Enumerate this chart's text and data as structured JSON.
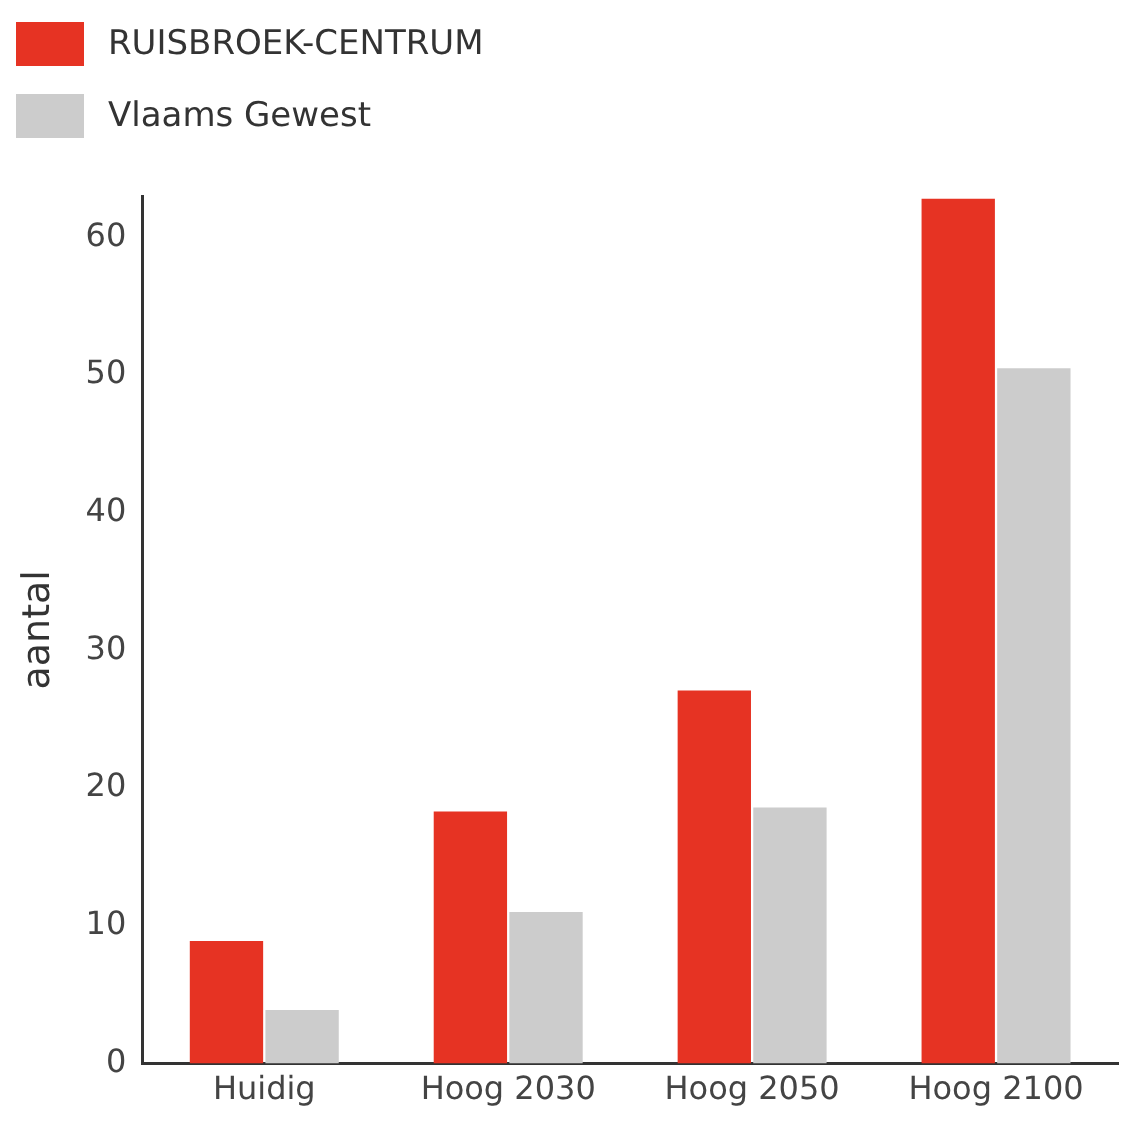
{
  "chart_data": {
    "type": "bar",
    "ylabel": "aantal",
    "categories": [
      "Huidig",
      "Hoog 2030",
      "Hoog 2050",
      "Hoog 2100"
    ],
    "series": [
      {
        "name": "RUISBROEK-CENTRUM",
        "color": "#e63323",
        "values": [
          8.9,
          18.3,
          27.1,
          62.8
        ]
      },
      {
        "name": "Vlaams Gewest",
        "color": "#cccccc",
        "values": [
          3.9,
          11.0,
          18.6,
          50.5
        ]
      }
    ],
    "ylim": [
      0,
      63
    ],
    "yticks": [
      0,
      10,
      20,
      30,
      40,
      50,
      60
    ],
    "grid": false,
    "legend": "top left"
  }
}
